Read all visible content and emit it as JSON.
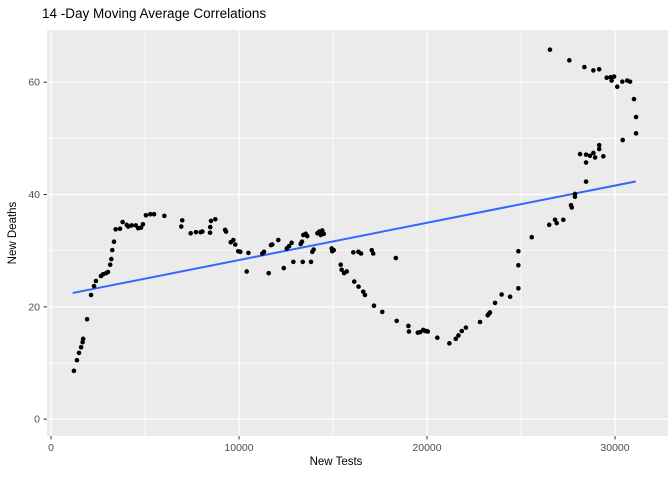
{
  "chart_data": {
    "type": "scatter",
    "title": "14 -Day Moving Average Correlations",
    "xlabel": "New Tests",
    "ylabel": "New Deaths",
    "x_ticks": [
      0,
      10000,
      20000,
      30000
    ],
    "y_ticks": [
      0,
      20,
      40,
      60
    ],
    "xlim": [
      -213,
      32819
    ],
    "ylim": [
      -3,
      69.3
    ],
    "grid": "white major and minor gridlines on gray panel, legend none",
    "panel_color": "#EBEBEB",
    "grid_color": "#FFFFFF",
    "point_color": "#000000",
    "tick_label_color": "#4D4D4D",
    "trend_line": {
      "type": "linear",
      "color": "#3366FF",
      "x1": 1200,
      "y1": 22.5,
      "x2": 31060,
      "y2": 42.3
    },
    "points": [
      [
        1220,
        8.6
      ],
      [
        1380,
        10.5
      ],
      [
        1490,
        11.8
      ],
      [
        1600,
        12.8
      ],
      [
        1680,
        13.7
      ],
      [
        1710,
        14.3
      ],
      [
        1920,
        17.8
      ],
      [
        2130,
        22.1
      ],
      [
        2290,
        23.7
      ],
      [
        2390,
        24.6
      ],
      [
        2660,
        25.5
      ],
      [
        2770,
        25.8
      ],
      [
        2930,
        26.0
      ],
      [
        3030,
        26.2
      ],
      [
        3150,
        27.5
      ],
      [
        3210,
        28.5
      ],
      [
        3260,
        30.1
      ],
      [
        3350,
        31.6
      ],
      [
        3440,
        33.8
      ],
      [
        3670,
        33.9
      ],
      [
        3810,
        35.1
      ],
      [
        4030,
        34.6
      ],
      [
        4110,
        34.3
      ],
      [
        4290,
        34.5
      ],
      [
        4510,
        34.5
      ],
      [
        4640,
        34.0
      ],
      [
        4790,
        34.1
      ],
      [
        4890,
        34.7
      ],
      [
        5050,
        36.3
      ],
      [
        5280,
        36.5
      ],
      [
        5480,
        36.5
      ],
      [
        6030,
        36.2
      ],
      [
        6930,
        34.3
      ],
      [
        6980,
        35.4
      ],
      [
        7430,
        33.1
      ],
      [
        7710,
        33.3
      ],
      [
        7960,
        33.3
      ],
      [
        8050,
        33.4
      ],
      [
        8460,
        33.2
      ],
      [
        8470,
        34.2
      ],
      [
        8510,
        35.3
      ],
      [
        8740,
        35.6
      ],
      [
        9260,
        33.7
      ],
      [
        9310,
        33.4
      ],
      [
        9560,
        31.5
      ],
      [
        9700,
        31.9
      ],
      [
        9800,
        31.1
      ],
      [
        9960,
        29.9
      ],
      [
        10070,
        29.8
      ],
      [
        10410,
        26.3
      ],
      [
        10500,
        29.6
      ],
      [
        11240,
        29.5
      ],
      [
        11330,
        29.8
      ],
      [
        11580,
        26.0
      ],
      [
        11700,
        31.0
      ],
      [
        11770,
        31.1
      ],
      [
        12090,
        31.9
      ],
      [
        12380,
        26.9
      ],
      [
        12540,
        30.4
      ],
      [
        12660,
        30.8
      ],
      [
        12800,
        31.4
      ],
      [
        12890,
        28.0
      ],
      [
        13280,
        31.2
      ],
      [
        13350,
        31.6
      ],
      [
        13390,
        28.0
      ],
      [
        13420,
        32.8
      ],
      [
        13550,
        33.0
      ],
      [
        13630,
        32.6
      ],
      [
        13830,
        28.0
      ],
      [
        13900,
        29.8
      ],
      [
        13970,
        30.2
      ],
      [
        14170,
        33.1
      ],
      [
        14270,
        33.4
      ],
      [
        14350,
        32.8
      ],
      [
        14430,
        33.6
      ],
      [
        14510,
        33.0
      ],
      [
        14930,
        30.4
      ],
      [
        14960,
        29.9
      ],
      [
        15040,
        30.1
      ],
      [
        15410,
        27.5
      ],
      [
        15460,
        26.6
      ],
      [
        15590,
        26.0
      ],
      [
        15730,
        26.3
      ],
      [
        16080,
        29.7
      ],
      [
        16130,
        24.5
      ],
      [
        16350,
        29.8
      ],
      [
        16360,
        23.6
      ],
      [
        16490,
        29.5
      ],
      [
        16610,
        22.7
      ],
      [
        16700,
        22.1
      ],
      [
        17060,
        30.1
      ],
      [
        17140,
        29.5
      ],
      [
        17180,
        20.2
      ],
      [
        17620,
        19.1
      ],
      [
        18340,
        28.7
      ],
      [
        18390,
        17.5
      ],
      [
        19010,
        16.6
      ],
      [
        19040,
        15.6
      ],
      [
        19510,
        15.4
      ],
      [
        19640,
        15.5
      ],
      [
        19800,
        15.9
      ],
      [
        19890,
        15.7
      ],
      [
        19980,
        15.7
      ],
      [
        20040,
        15.6
      ],
      [
        20550,
        14.5
      ],
      [
        21190,
        13.5
      ],
      [
        21530,
        14.3
      ],
      [
        21670,
        14.9
      ],
      [
        21850,
        15.7
      ],
      [
        22070,
        16.3
      ],
      [
        22820,
        17.3
      ],
      [
        23230,
        18.5
      ],
      [
        23300,
        18.8
      ],
      [
        23350,
        19.0
      ],
      [
        23620,
        20.7
      ],
      [
        23970,
        22.2
      ],
      [
        24420,
        21.8
      ],
      [
        24860,
        23.3
      ],
      [
        24860,
        27.4
      ],
      [
        24860,
        29.9
      ],
      [
        25570,
        32.4
      ],
      [
        26500,
        34.6
      ],
      [
        26810,
        35.5
      ],
      [
        26900,
        34.9
      ],
      [
        27250,
        35.5
      ],
      [
        27660,
        38.1
      ],
      [
        27700,
        37.7
      ],
      [
        27870,
        39.6
      ],
      [
        27870,
        40.1
      ],
      [
        28460,
        42.3
      ],
      [
        28460,
        45.7
      ],
      [
        26540,
        65.8
      ],
      [
        27570,
        63.9
      ],
      [
        28370,
        62.7
      ],
      [
        28850,
        62.1
      ],
      [
        29160,
        62.3
      ],
      [
        29560,
        60.8
      ],
      [
        29770,
        60.9
      ],
      [
        29820,
        60.3
      ],
      [
        29950,
        61.0
      ],
      [
        30120,
        59.2
      ],
      [
        30390,
        60.1
      ],
      [
        30650,
        60.3
      ],
      [
        30800,
        60.1
      ],
      [
        31010,
        57.0
      ],
      [
        31120,
        53.8
      ],
      [
        31120,
        50.9
      ],
      [
        30410,
        49.7
      ],
      [
        29160,
        48.8
      ],
      [
        29160,
        48.1
      ],
      [
        28850,
        47.4
      ],
      [
        28460,
        47.1
      ],
      [
        28140,
        47.2
      ],
      [
        28670,
        46.9
      ],
      [
        28940,
        46.6
      ],
      [
        29380,
        46.8
      ]
    ]
  }
}
